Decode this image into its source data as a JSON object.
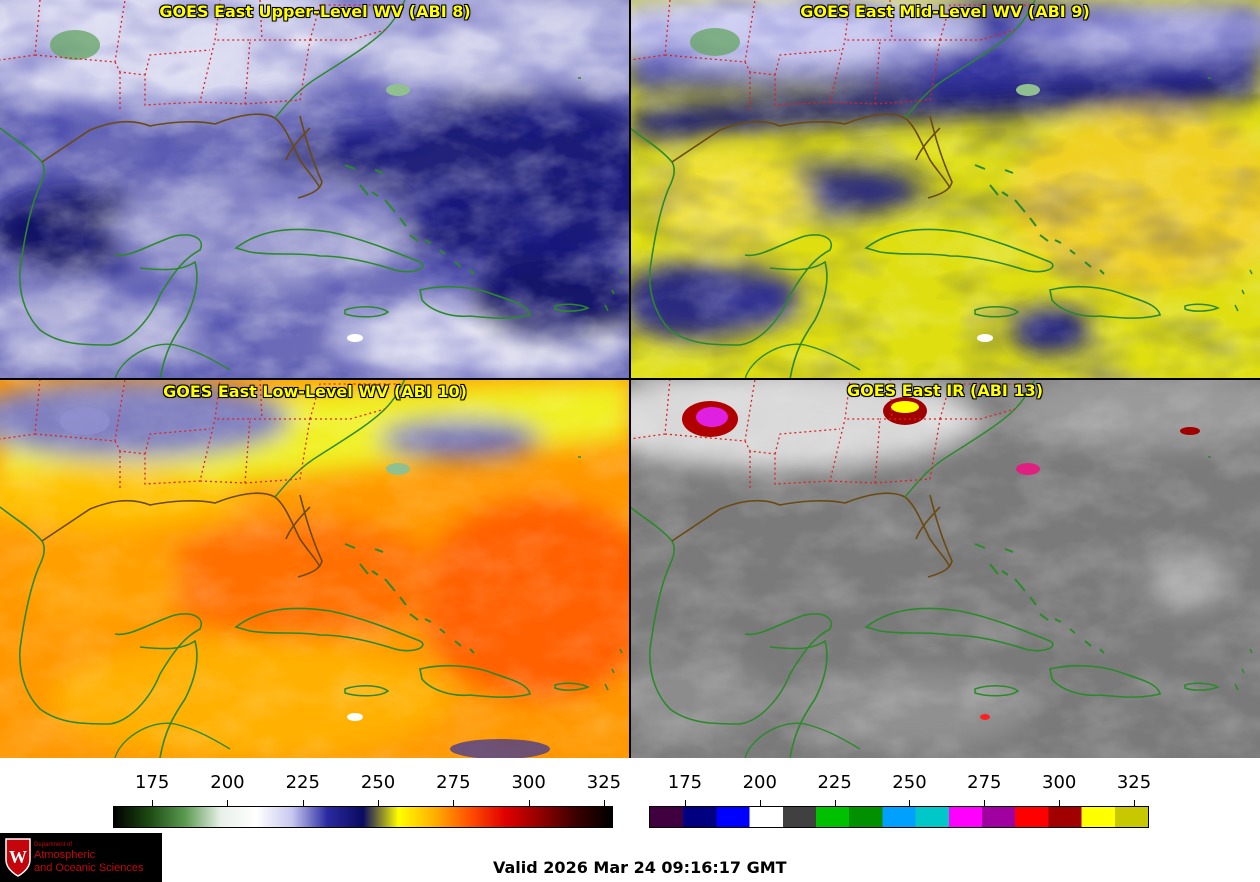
{
  "panels": [
    {
      "id": "upper",
      "title": "GOES East Upper-Level WV (ABI 8)"
    },
    {
      "id": "mid",
      "title": "GOES East Mid-Level WV (ABI 9)"
    },
    {
      "id": "low",
      "title": "GOES East Low-Level WV (ABI 10)"
    },
    {
      "id": "ir",
      "title": "GOES East IR (ABI 13)"
    }
  ],
  "colorbar_wv": {
    "ticks": [
      "175",
      "200",
      "225",
      "250",
      "275",
      "300",
      "325"
    ],
    "range": [
      162,
      328
    ],
    "colors": [
      "#000000",
      "#1d4a12",
      "#5a9a50",
      "#e8f0e8",
      "#ffffff",
      "#c8c8f0",
      "#2a2aa0",
      "#0a0a60",
      "#ffff00",
      "#ffb000",
      "#ff5000",
      "#e00000",
      "#900000",
      "#3a0000",
      "#000000"
    ]
  },
  "colorbar_ir": {
    "ticks": [
      "175",
      "200",
      "225",
      "250",
      "275",
      "300",
      "325"
    ],
    "range": [
      163,
      330
    ],
    "segments": [
      "#400040",
      "#000080",
      "#0000ff",
      "#ffffff",
      "#404040",
      "#00c000",
      "#009000",
      "#00a0ff",
      "#00c8c8",
      "#ff00ff",
      "#a000a0",
      "#ff0000",
      "#a00000",
      "#ffff00",
      "#c8c800"
    ]
  },
  "logo": {
    "dept": "Department of",
    "line1": "Atmospheric",
    "line2": "and Oceanic Sciences"
  },
  "valid_time": "Valid 2026 Mar 24 09:16:17 GMT"
}
